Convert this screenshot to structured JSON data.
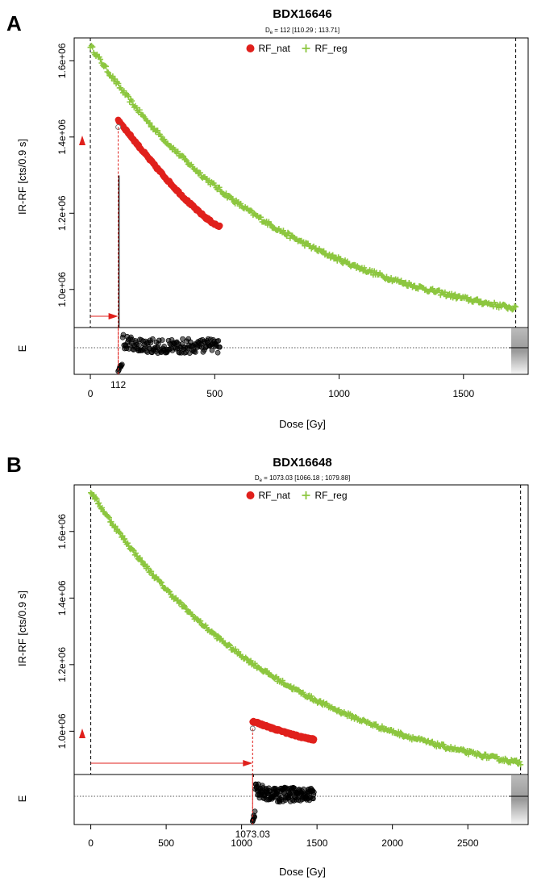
{
  "chart_data": [
    {
      "panel": "A",
      "type": "scatter",
      "title": "BDX16646",
      "subtitle_main": "D",
      "subtitle_sub": "e",
      "subtitle_rest": " = 112 [110.29 ; 113.71]",
      "xlabel": "Dose [Gy]",
      "ylabel": "IR-RF [cts/0.9 s]",
      "residual_label": "E",
      "de_label": "112",
      "de": 112,
      "xlim": [
        -65,
        1760
      ],
      "ylim": [
        900000,
        1660000
      ],
      "xticks": [
        0,
        500,
        1000,
        1500
      ],
      "xtick_labels": [
        "0",
        "500",
        "1000",
        "1500"
      ],
      "yticks": [
        1000000,
        1200000,
        1400000,
        1600000
      ],
      "ytick_labels": [
        "1.0e+06",
        "1.2e+06",
        "1.4e+06",
        "1.6e+06"
      ],
      "legend": {
        "position": "top-center",
        "entries": [
          "RF_nat",
          "RF_reg"
        ]
      },
      "series": [
        {
          "name": "RF_reg",
          "x_range": [
            0,
            1710
          ],
          "y_start": 1640000,
          "y_end": 950000,
          "points": 380
        },
        {
          "name": "RF_nat",
          "x_range": [
            112,
            520
          ],
          "y_start": 1445000,
          "y_end": 1165000,
          "points": 140
        }
      ],
      "vlines": [
        0,
        1710
      ],
      "colors": {
        "RF_nat": "#e0201c",
        "RF_reg": "#8cc63f"
      }
    },
    {
      "panel": "B",
      "type": "scatter",
      "title": "BDX16648",
      "subtitle_main": "D",
      "subtitle_sub": "e",
      "subtitle_rest": " = 1073.03 [1066.18 ; 1079.88]",
      "xlabel": "Dose [Gy]",
      "ylabel": "IR-RF [cts/0.9 s]",
      "residual_label": "E",
      "de_label": "1073.03",
      "de": 1073.03,
      "xlim": [
        -110,
        2900
      ],
      "ylim": [
        870000,
        1740000
      ],
      "xticks": [
        0,
        500,
        1000,
        1500,
        2000,
        2500
      ],
      "xtick_labels": [
        "0",
        "500",
        "1000",
        "1500",
        "2000",
        "2500"
      ],
      "yticks": [
        1000000,
        1200000,
        1400000,
        1600000
      ],
      "ytick_labels": [
        "1.0e+06",
        "1.2e+06",
        "1.4e+06",
        "1.6e+06"
      ],
      "legend": {
        "position": "top-center",
        "entries": [
          "RF_nat",
          "RF_reg"
        ]
      },
      "series": [
        {
          "name": "RF_reg",
          "x_range": [
            0,
            2850
          ],
          "y_start": 1720000,
          "y_end": 905000,
          "points": 420
        },
        {
          "name": "RF_nat",
          "x_range": [
            1073,
            1480
          ],
          "y_start": 1030000,
          "y_end": 975000,
          "points": 140
        }
      ],
      "vlines": [
        0,
        2850
      ],
      "colors": {
        "RF_nat": "#e0201c",
        "RF_reg": "#8cc63f"
      }
    }
  ]
}
